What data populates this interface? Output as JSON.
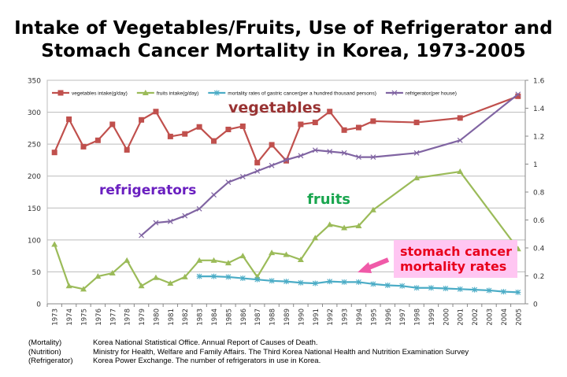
{
  "title_lines": [
    "Intake of Vegetables/Fruits, Use of Refrigerator and",
    "Stomach Cancer Mortality in Korea, 1973-2005"
  ],
  "chart_data": {
    "type": "line",
    "title": "Intake of Vegetables/Fruits, Use of Refrigerator and Stomach Cancer Mortality in Korea, 1973-2005",
    "categories": [
      "1973",
      "1974",
      "1975",
      "1976",
      "1977",
      "1978",
      "1979",
      "1980",
      "1981",
      "1982",
      "1983",
      "1984",
      "1985",
      "1986",
      "1987",
      "1988",
      "1989",
      "1990",
      "1991",
      "1992",
      "1993",
      "1994",
      "1995",
      "1996",
      "1997",
      "1998",
      "1999",
      "2000",
      "2001",
      "2002",
      "2003",
      "2004",
      "2005"
    ],
    "y_left": {
      "range": [
        0,
        350
      ],
      "ticks": [
        "0",
        "50",
        "100",
        "150",
        "200",
        "250",
        "300",
        "350"
      ]
    },
    "y_right": {
      "range": [
        0,
        1.6
      ],
      "ticks": [
        "0",
        "0.2",
        "0.4",
        "0.6",
        "0.8",
        "1",
        "1.2",
        "1.4",
        "1.6"
      ]
    },
    "grid": true,
    "legend_position": "top",
    "series": [
      {
        "name": "vegetables intake(g/day)",
        "axis": "left",
        "color": "#c0504d",
        "marker": "square",
        "values": [
          237,
          289,
          246,
          256,
          281,
          241,
          288,
          301,
          262,
          266,
          277,
          255,
          273,
          278,
          221,
          249,
          224,
          281,
          284,
          301,
          272,
          276,
          286,
          null,
          null,
          284,
          null,
          null,
          291,
          null,
          null,
          null,
          325
        ]
      },
      {
        "name": "fruits intake(g/day)",
        "axis": "left",
        "color": "#9bbb59",
        "marker": "triangle",
        "values": [
          93,
          28,
          23,
          43,
          48,
          68,
          28,
          41,
          32,
          42,
          68,
          68,
          64,
          75,
          42,
          80,
          77,
          69,
          103,
          124,
          119,
          122,
          147,
          null,
          null,
          197,
          null,
          null,
          207,
          null,
          null,
          null,
          86
        ]
      },
      {
        "name": "mortality rates of gastric cancer(per a hundred thousand persons)",
        "axis": "left",
        "color": "#4bacc6",
        "marker": "asterisk",
        "values": [
          null,
          null,
          null,
          null,
          null,
          null,
          null,
          null,
          null,
          null,
          43,
          43,
          42,
          40,
          38,
          36,
          35,
          33,
          32,
          35,
          34,
          34,
          31,
          29,
          28,
          25,
          25,
          24,
          23,
          22,
          21,
          19,
          18
        ]
      },
      {
        "name": "refrigerator(per house)",
        "axis": "right",
        "color": "#8064a2",
        "marker": "x",
        "values": [
          null,
          null,
          null,
          null,
          null,
          null,
          0.49,
          0.58,
          0.59,
          0.63,
          0.68,
          0.78,
          0.87,
          0.91,
          0.95,
          0.99,
          1.03,
          1.06,
          1.1,
          1.09,
          1.08,
          1.05,
          1.05,
          null,
          null,
          1.08,
          null,
          null,
          1.17,
          null,
          null,
          null,
          1.5
        ]
      }
    ],
    "annotations": {
      "vegetables": "vegetables",
      "refrigerators": "refrigerators",
      "fruits": "fruits",
      "mortality_line1": "stomach cancer",
      "mortality_line2": "mortality rates"
    },
    "annotation_colors": {
      "vegetables": "#993333",
      "refrigerators": "#6a1fc0",
      "fruits": "#1aa64f",
      "mortality": "#e8001c",
      "mortality_box": "#ffc6f2",
      "arrow": "#f05aa8"
    }
  },
  "notes": [
    {
      "key": "(Mortality)",
      "text": "Korea National Statistical Office.  Annual Report of Causes of Death."
    },
    {
      "key": "(Nutrition)",
      "text": "Ministry for Health, Welfare and Family Affairs. The Third Korea National Health and Nutrition Examination Survey"
    },
    {
      "key": "(Refrigerator)",
      "text": "Korea Power Exchange. The number of refrigerators in use in Korea."
    }
  ]
}
